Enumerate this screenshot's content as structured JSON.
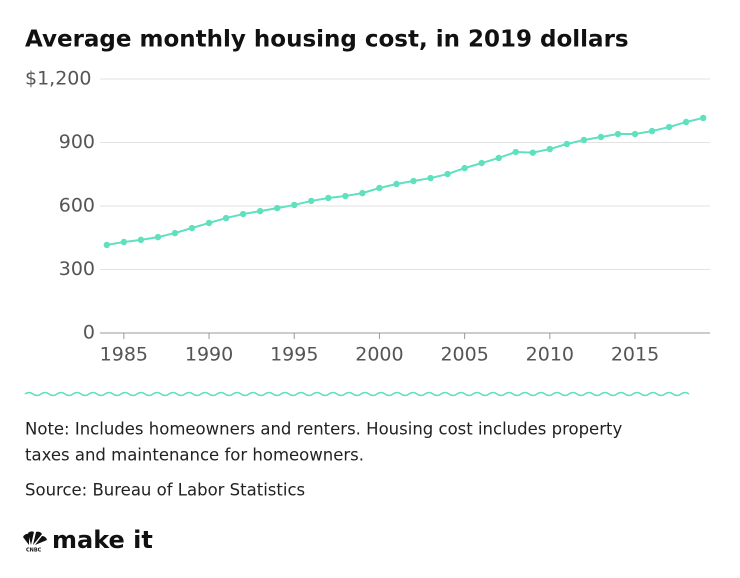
{
  "chart_data": {
    "type": "line",
    "title": "Average monthly housing cost, in 2019 dollars",
    "x": [
      1984,
      1985,
      1986,
      1987,
      1988,
      1989,
      1990,
      1991,
      1992,
      1993,
      1994,
      1995,
      1996,
      1997,
      1998,
      1999,
      2000,
      2001,
      2002,
      2003,
      2004,
      2005,
      2006,
      2007,
      2008,
      2009,
      2010,
      2011,
      2012,
      2013,
      2014,
      2015,
      2016,
      2017,
      2018,
      2019
    ],
    "series": [
      {
        "name": "Average monthly housing cost",
        "color": "#5fe0bf",
        "values": [
          416,
          430,
          440,
          453,
          472,
          496,
          520,
          543,
          562,
          576,
          590,
          605,
          624,
          638,
          647,
          661,
          685,
          704,
          718,
          732,
          751,
          779,
          803,
          827,
          855,
          852,
          869,
          893,
          912,
          926,
          940,
          940,
          954,
          973,
          997,
          1016
        ]
      }
    ],
    "xlim": [
      1983.6,
      2019.4
    ],
    "xticks": [
      1985,
      1990,
      1995,
      2000,
      2005,
      2010,
      2015
    ],
    "ylim": [
      0,
      1200
    ],
    "yticks": [
      0,
      300,
      600,
      900,
      {
        "value": 1200,
        "label": "$1,200"
      }
    ],
    "grid": true
  },
  "notes": [
    "Note: Includes homeowners and renters. Housing cost includes property",
    "taxes and maintenance for homeowners."
  ],
  "source": "Source: Bureau of Labor Statistics",
  "logo": {
    "text": "make it",
    "small": "CNBC"
  }
}
